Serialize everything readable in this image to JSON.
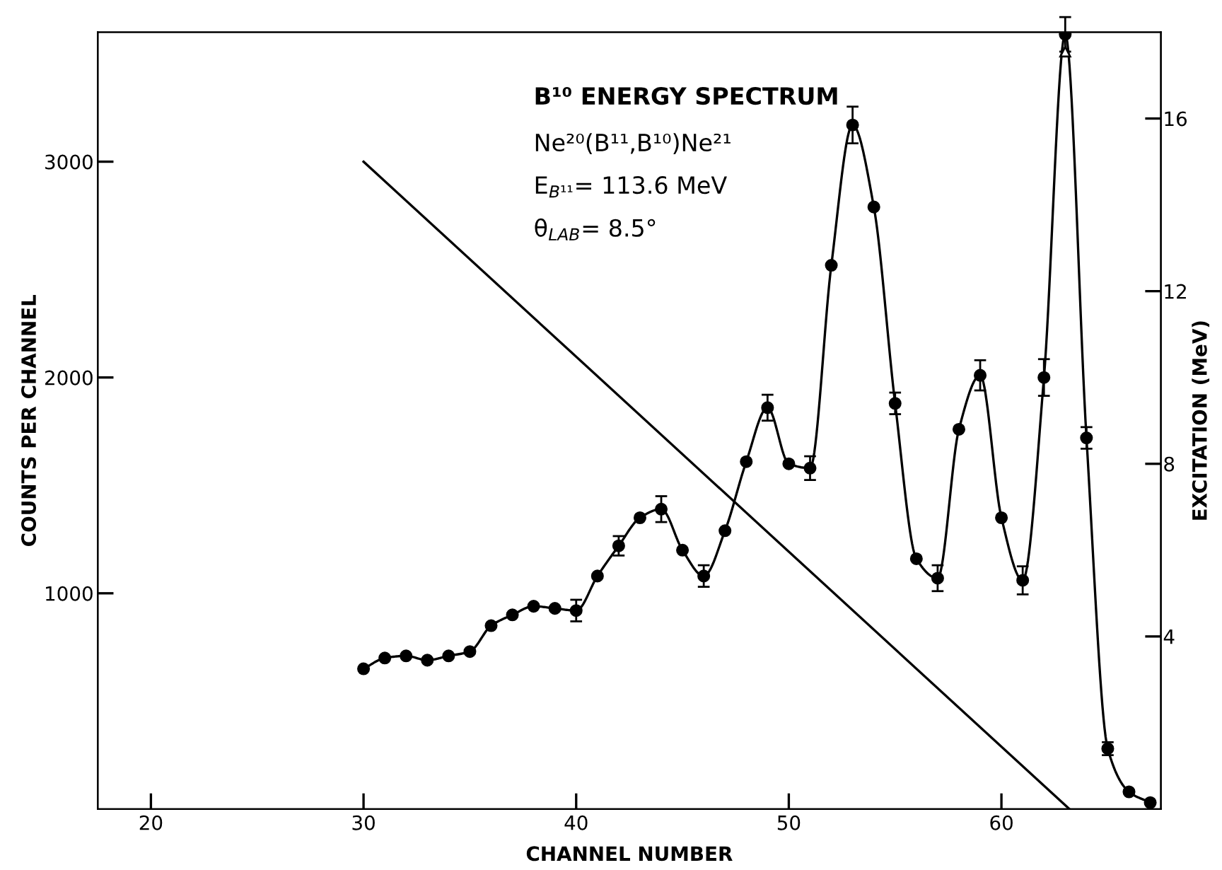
{
  "chart_data": {
    "type": "line",
    "title": "B¹⁰ ENERGY SPECTRUM",
    "xlabel": "CHANNEL NUMBER",
    "ylabel": "COUNTS PER CHANNEL",
    "y2label": "EXCITATION (MeV)",
    "annotations": [
      "Ne²⁰(B¹¹,B¹⁰)Ne²¹",
      "E$_{B¹¹}$= 113.6 MeV",
      "θ$_{LAB}$= 8.5°"
    ],
    "xlim": [
      17.5,
      67.5
    ],
    "xticks": [
      20,
      30,
      40,
      50,
      60
    ],
    "ylim": [
      0,
      3600
    ],
    "yticks": [
      1000,
      2000,
      3000
    ],
    "y2lim": [
      0,
      18
    ],
    "y2ticks": [
      4,
      8,
      12,
      16
    ],
    "grid": false,
    "legend": false,
    "series": [
      {
        "color": "#000000",
        "marker": "circle",
        "line_style": "solid",
        "x": [
          30,
          31,
          32,
          33,
          34,
          35,
          36,
          37,
          38,
          39,
          40,
          41,
          42,
          43,
          44,
          45,
          46,
          47,
          48,
          49,
          50,
          51,
          52,
          53,
          54,
          55,
          56,
          57,
          58,
          59,
          60,
          61,
          62,
          63,
          64,
          65,
          66,
          67
        ],
        "values": [
          650,
          700,
          710,
          690,
          710,
          730,
          850,
          900,
          940,
          930,
          920,
          1080,
          1220,
          1350,
          1390,
          1200,
          1080,
          1290,
          1610,
          1860,
          1600,
          1580,
          2520,
          3170,
          2790,
          1880,
          1160,
          1070,
          1760,
          2010,
          1350,
          1060,
          2000,
          3590,
          1720,
          280,
          80,
          30
        ],
        "errors": [
          null,
          null,
          null,
          null,
          null,
          null,
          null,
          null,
          null,
          null,
          50,
          null,
          45,
          null,
          60,
          null,
          50,
          null,
          null,
          60,
          null,
          55,
          null,
          85,
          null,
          50,
          null,
          60,
          null,
          70,
          null,
          65,
          85,
          80,
          50,
          30,
          null,
          null
        ]
      },
      {
        "type": "scatter",
        "color": "#000000",
        "marker": "triangle",
        "x": [
          63
        ],
        "values": [
          3510
        ]
      },
      {
        "type": "line",
        "color": "#000000",
        "marker": "none",
        "line_style": "solid",
        "axis": "y2",
        "x": [
          30,
          63.2
        ],
        "values": [
          15,
          0
        ]
      }
    ]
  }
}
